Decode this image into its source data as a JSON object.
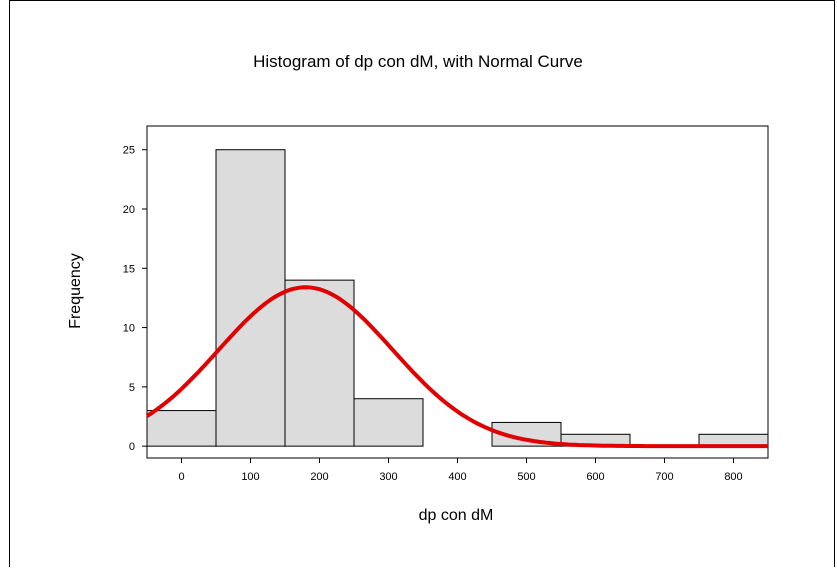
{
  "chart_data": {
    "type": "bar",
    "title": "Histogram of dp con dM, with Normal Curve",
    "xlabel": "dp con dM",
    "ylabel": "Frequency",
    "xlim": [
      -50,
      850
    ],
    "ylim": [
      -1,
      27
    ],
    "x_ticks": [
      0,
      100,
      200,
      300,
      400,
      500,
      600,
      700,
      800
    ],
    "y_ticks": [
      0,
      5,
      10,
      15,
      20,
      25
    ],
    "bins": [
      {
        "center": 0,
        "count": 3
      },
      {
        "center": 100,
        "count": 25
      },
      {
        "center": 200,
        "count": 14
      },
      {
        "center": 300,
        "count": 4
      },
      {
        "center": 400,
        "count": 0
      },
      {
        "center": 500,
        "count": 2
      },
      {
        "center": 600,
        "count": 1
      },
      {
        "center": 700,
        "count": 0
      },
      {
        "center": 800,
        "count": 1
      }
    ],
    "bin_width": 100,
    "normal_curve": {
      "mean": 180,
      "sd": 126,
      "peak": 13.4,
      "color": "#e00000"
    },
    "bar_color": "#dcdcdc",
    "grid": false,
    "legend": "none"
  }
}
